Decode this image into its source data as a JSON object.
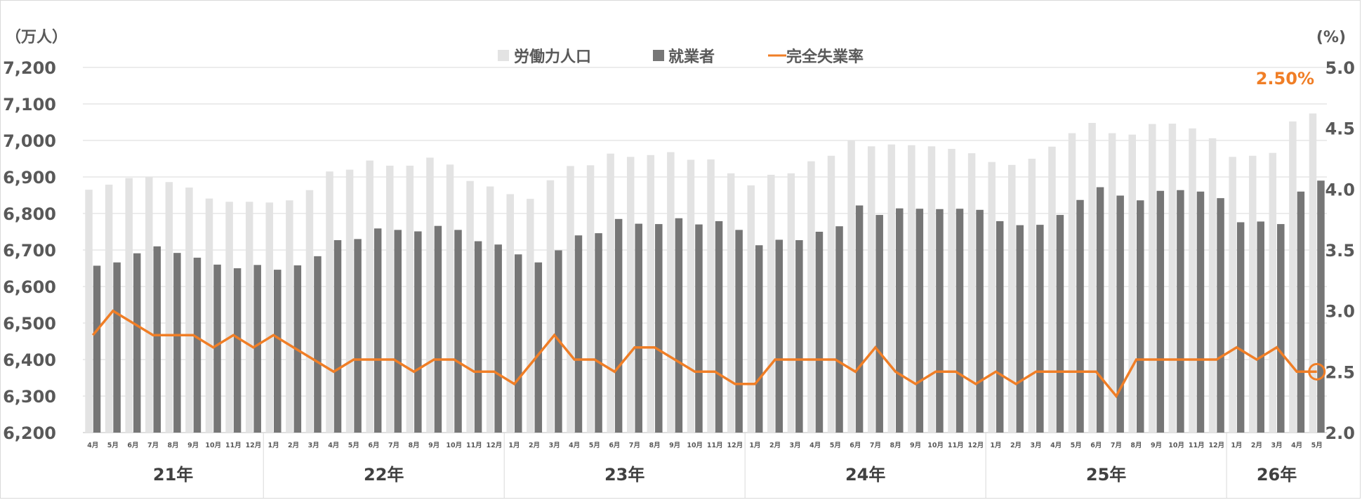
{
  "chart_data": {
    "type": "bar",
    "left_unit": "（万人）",
    "right_unit": "(%)",
    "legend": [
      "労働力人口",
      "就業者",
      "完全失業率"
    ],
    "left_axis": {
      "ylim": [
        6200,
        7200
      ],
      "ticks": [
        "6,200",
        "6,300",
        "6,400",
        "6,500",
        "6,600",
        "6,700",
        "6,800",
        "6,900",
        "7,000",
        "7,100",
        "7,200"
      ]
    },
    "right_axis": {
      "ylim": [
        2.0,
        5.0
      ],
      "ticks": [
        "2.0",
        "2.5",
        "3.0",
        "3.5",
        "4.0",
        "4.5",
        "5.0"
      ]
    },
    "categories": [
      "4月",
      "5月",
      "6月",
      "7月",
      "8月",
      "9月",
      "10月",
      "11月",
      "12月",
      "1月",
      "2月",
      "3月",
      "4月",
      "5月",
      "6月",
      "7月",
      "8月",
      "9月",
      "10月",
      "11月",
      "12月",
      "1月",
      "2月",
      "3月",
      "4月",
      "5月",
      "6月",
      "7月",
      "8月",
      "9月",
      "10月",
      "11月",
      "12月",
      "1月",
      "2月",
      "3月",
      "4月",
      "5月",
      "6月",
      "7月",
      "8月",
      "9月",
      "10月",
      "11月",
      "12月",
      "1月",
      "2月",
      "3月",
      "4月",
      "5月",
      "6月",
      "7月",
      "8月",
      "9月",
      "10月",
      "11月",
      "12月",
      "1月",
      "2月",
      "3月",
      "4月",
      "5月"
    ],
    "year_groups": [
      {
        "label": "21年",
        "count": 9
      },
      {
        "label": "22年",
        "count": 12
      },
      {
        "label": "23年",
        "count": 12
      },
      {
        "label": "24年",
        "count": 12
      },
      {
        "label": "25年",
        "count": 12
      },
      {
        "label": "26年",
        "count": 5
      }
    ],
    "series": [
      {
        "name": "労働力人口",
        "axis": "left",
        "color": "#e3e3e3",
        "values": [
          6865,
          6879,
          6897,
          6900,
          6886,
          6871,
          6841,
          6832,
          6832,
          6830,
          6836,
          6864,
          6915,
          6920,
          6945,
          6931,
          6931,
          6953,
          6934,
          6889,
          6874,
          6853,
          6840,
          6891,
          6930,
          6932,
          6964,
          6955,
          6960,
          6968,
          6947,
          6948,
          6910,
          6877,
          6906,
          6910,
          6943,
          6958,
          7000,
          6984,
          6989,
          6987,
          6984,
          6977,
          6965,
          6941,
          6933,
          6950,
          6983,
          7020,
          7048,
          7020,
          7016,
          7045,
          7046,
          7033,
          7006,
          6955,
          6958,
          6966,
          7052,
          7074
        ]
      },
      {
        "name": "就業者",
        "axis": "left",
        "color": "#767676",
        "values": [
          6657,
          6666,
          6691,
          6710,
          6692,
          6679,
          6660,
          6650,
          6659,
          6646,
          6658,
          6683,
          6727,
          6730,
          6759,
          6755,
          6751,
          6766,
          6755,
          6724,
          6715,
          6688,
          6666,
          6699,
          6740,
          6746,
          6785,
          6772,
          6771,
          6787,
          6770,
          6779,
          6755,
          6713,
          6728,
          6727,
          6750,
          6765,
          6822,
          6796,
          6814,
          6813,
          6812,
          6813,
          6810,
          6779,
          6768,
          6769,
          6796,
          6837,
          6872,
          6849,
          6836,
          6862,
          6864,
          6860,
          6842,
          6776,
          6778,
          6771,
          6860,
          6890
        ]
      },
      {
        "name": "完全失業率",
        "axis": "right",
        "color": "#f07e26",
        "values": [
          2.8,
          3.0,
          2.9,
          2.8,
          2.8,
          2.8,
          2.7,
          2.8,
          2.7,
          2.8,
          2.7,
          2.6,
          2.5,
          2.6,
          2.6,
          2.6,
          2.5,
          2.6,
          2.6,
          2.5,
          2.5,
          2.4,
          2.6,
          2.8,
          2.6,
          2.6,
          2.5,
          2.7,
          2.7,
          2.6,
          2.5,
          2.5,
          2.4,
          2.4,
          2.6,
          2.6,
          2.6,
          2.6,
          2.5,
          2.7,
          2.5,
          2.4,
          2.5,
          2.5,
          2.4,
          2.5,
          2.4,
          2.5,
          2.5,
          2.5,
          2.5,
          2.3,
          2.6,
          2.6,
          2.6,
          2.6,
          2.6,
          2.7,
          2.6,
          2.7,
          2.5,
          2.5
        ]
      }
    ],
    "annotation": {
      "text": "2.50%",
      "color": "#f07e26",
      "series": "完全失業率",
      "index": 61
    }
  }
}
